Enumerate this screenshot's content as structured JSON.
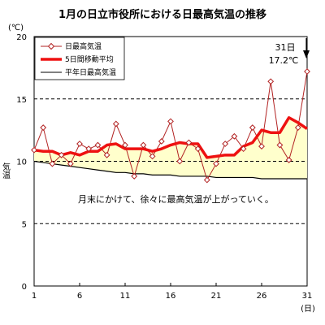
{
  "chart_data": {
    "type": "line",
    "title": "1月の日立市役所における日最高気温の推移",
    "ylabel": "気温",
    "yunit": "(℃)",
    "xunit": "(日)",
    "xlim": [
      1,
      31
    ],
    "ylim": [
      0,
      20
    ],
    "yticks": [
      0,
      5,
      10,
      15,
      20
    ],
    "xticks": [
      1,
      6,
      11,
      16,
      21,
      26,
      31
    ],
    "dashed_grid": [
      5,
      10,
      15
    ],
    "legend_position": "top-left",
    "x": [
      1,
      2,
      3,
      4,
      5,
      6,
      7,
      8,
      9,
      10,
      11,
      12,
      13,
      14,
      15,
      16,
      17,
      18,
      19,
      20,
      21,
      22,
      23,
      24,
      25,
      26,
      27,
      28,
      29,
      30,
      31
    ],
    "series": [
      {
        "name": "日最高気温",
        "color": "#b22222",
        "marker": "diamond",
        "values": [
          10.9,
          12.7,
          9.8,
          10.5,
          9.8,
          11.4,
          11.0,
          11.3,
          10.5,
          13.0,
          11.3,
          8.8,
          11.3,
          10.4,
          11.6,
          13.2,
          10.0,
          11.5,
          11.0,
          8.5,
          9.8,
          11.4,
          12.0,
          11.0,
          12.7,
          11.2,
          16.4,
          11.3,
          10.1,
          12.7,
          17.2
        ]
      },
      {
        "name": "5日間移動平均",
        "color": "#ee1111",
        "values": [
          10.9,
          10.8,
          10.8,
          10.5,
          10.7,
          10.5,
          10.8,
          10.8,
          11.3,
          11.4,
          11.0,
          11.0,
          11.0,
          10.8,
          11.0,
          11.3,
          11.5,
          11.4,
          11.4,
          10.3,
          10.4,
          10.5,
          10.5,
          11.2,
          11.5,
          12.5,
          12.3,
          12.3,
          13.5,
          13.1,
          12.6
        ]
      },
      {
        "name": "平年日最高気温",
        "color": "#000000",
        "values": [
          10.0,
          9.9,
          9.8,
          9.7,
          9.6,
          9.5,
          9.4,
          9.3,
          9.2,
          9.1,
          9.1,
          9.0,
          9.0,
          8.9,
          8.9,
          8.9,
          8.8,
          8.8,
          8.8,
          8.8,
          8.7,
          8.7,
          8.7,
          8.7,
          8.7,
          8.6,
          8.6,
          8.6,
          8.6,
          8.6,
          8.6
        ]
      }
    ],
    "fill_between": {
      "upper": "5日間移動平均",
      "lower": "平年日最高気温",
      "color": "#ffffcc"
    },
    "annotations": {
      "callout_day": "31日",
      "callout_value": "17.2℃",
      "note": "月末にかけて、徐々に最高気温が上がっていく。"
    }
  }
}
